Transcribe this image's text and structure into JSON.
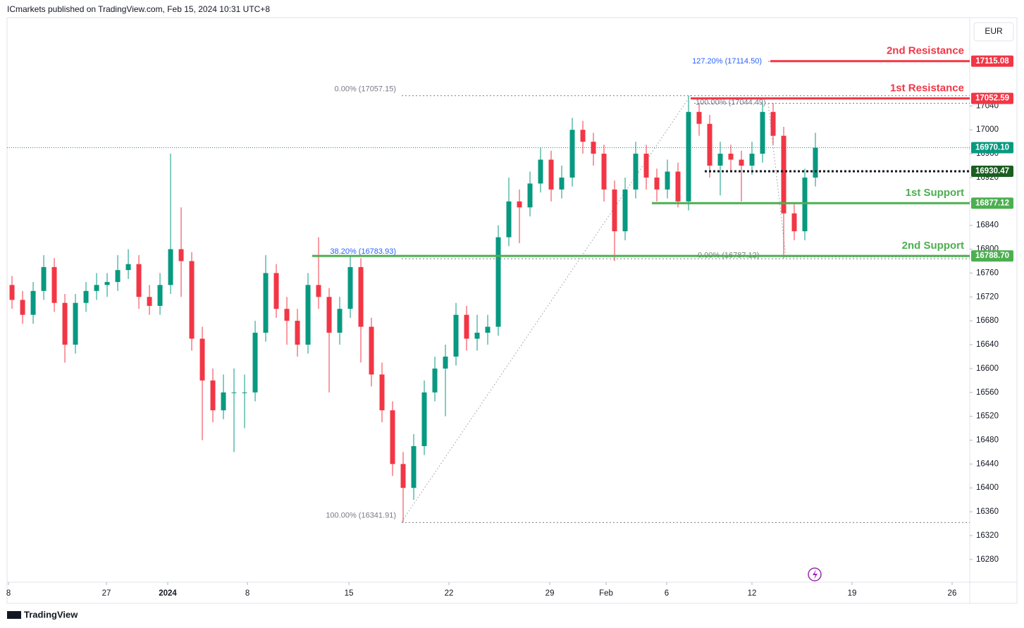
{
  "header": "ICmarkets published on TradingView.com, Feb 15, 2024 10:31 UTC+8",
  "footer": "TradingView",
  "chart_data": {
    "type": "candlestick",
    "currency": "EUR",
    "up_color": "#089981",
    "down_color": "#f23645",
    "candles": [
      [
        16740,
        16755,
        16700,
        16715
      ],
      [
        16715,
        16730,
        16675,
        16690
      ],
      [
        16690,
        16745,
        16675,
        16730
      ],
      [
        16730,
        16790,
        16715,
        16770
      ],
      [
        16770,
        16785,
        16695,
        16710
      ],
      [
        16710,
        16725,
        16610,
        16640
      ],
      [
        16640,
        16725,
        16625,
        16710
      ],
      [
        16710,
        16745,
        16695,
        16730
      ],
      [
        16730,
        16760,
        16715,
        16740
      ],
      [
        16740,
        16760,
        16720,
        16745
      ],
      [
        16745,
        16790,
        16730,
        16765
      ],
      [
        16765,
        16800,
        16750,
        16775
      ],
      [
        16775,
        16790,
        16700,
        16720
      ],
      [
        16720,
        16740,
        16690,
        16705
      ],
      [
        16705,
        16760,
        16690,
        16740
      ],
      [
        16740,
        16960,
        16725,
        16800
      ],
      [
        16800,
        16870,
        16720,
        16780
      ],
      [
        16780,
        16795,
        16630,
        16650
      ],
      [
        16650,
        16670,
        16480,
        16580
      ],
      [
        16580,
        16600,
        16510,
        16530
      ],
      [
        16530,
        16590,
        16515,
        16560
      ],
      [
        16560,
        16600,
        16460,
        16560
      ],
      [
        16560,
        16590,
        16500,
        16560
      ],
      [
        16560,
        16680,
        16545,
        16660
      ],
      [
        16660,
        16790,
        16645,
        16760
      ],
      [
        16760,
        16775,
        16685,
        16700
      ],
      [
        16700,
        16720,
        16640,
        16680
      ],
      [
        16680,
        16700,
        16620,
        16640
      ],
      [
        16640,
        16760,
        16625,
        16740
      ],
      [
        16740,
        16820,
        16700,
        16720
      ],
      [
        16720,
        16735,
        16560,
        16660
      ],
      [
        16660,
        16720,
        16640,
        16700
      ],
      [
        16700,
        16790,
        16685,
        16770
      ],
      [
        16770,
        16785,
        16610,
        16670
      ],
      [
        16670,
        16685,
        16570,
        16590
      ],
      [
        16590,
        16610,
        16510,
        16530
      ],
      [
        16530,
        16545,
        16420,
        16440
      ],
      [
        16440,
        16460,
        16342,
        16400
      ],
      [
        16400,
        16490,
        16380,
        16470
      ],
      [
        16470,
        16580,
        16455,
        16560
      ],
      [
        16560,
        16620,
        16545,
        16600
      ],
      [
        16600,
        16640,
        16520,
        16620
      ],
      [
        16620,
        16710,
        16605,
        16690
      ],
      [
        16690,
        16705,
        16630,
        16650
      ],
      [
        16650,
        16690,
        16630,
        16660
      ],
      [
        16660,
        16690,
        16640,
        16670
      ],
      [
        16670,
        16840,
        16655,
        16820
      ],
      [
        16820,
        16920,
        16805,
        16880
      ],
      [
        16880,
        16900,
        16810,
        16870
      ],
      [
        16870,
        16930,
        16855,
        16910
      ],
      [
        16910,
        16970,
        16895,
        16950
      ],
      [
        16950,
        16965,
        16880,
        16900
      ],
      [
        16900,
        16940,
        16885,
        16920
      ],
      [
        16920,
        17020,
        16905,
        17000
      ],
      [
        17000,
        17015,
        16960,
        16980
      ],
      [
        16980,
        16995,
        16940,
        16960
      ],
      [
        16960,
        16975,
        16880,
        16900
      ],
      [
        16900,
        16915,
        16780,
        16830
      ],
      [
        16830,
        16920,
        16815,
        16900
      ],
      [
        16900,
        16980,
        16885,
        16960
      ],
      [
        16960,
        16975,
        16900,
        16920
      ],
      [
        16920,
        16935,
        16880,
        16900
      ],
      [
        16900,
        16950,
        16885,
        16930
      ],
      [
        16930,
        16945,
        16870,
        16880
      ],
      [
        16880,
        17057,
        16865,
        17030
      ],
      [
        17030,
        17045,
        16990,
        17010
      ],
      [
        17010,
        17025,
        16920,
        16940
      ],
      [
        16940,
        16980,
        16890,
        16960
      ],
      [
        16960,
        16975,
        16930,
        16950
      ],
      [
        16950,
        16965,
        16880,
        16940
      ],
      [
        16940,
        16980,
        16925,
        16960
      ],
      [
        16960,
        17044,
        16945,
        17030
      ],
      [
        17030,
        17045,
        16975,
        16990
      ],
      [
        16990,
        17005,
        16785,
        16860
      ],
      [
        16860,
        16875,
        16815,
        16830
      ],
      [
        16830,
        16935,
        16815,
        16920
      ],
      [
        16920,
        16995,
        16905,
        16970
      ]
    ],
    "xlim": [
      -0.47,
      90.6
    ],
    "xticks": [
      {
        "value": -0.33,
        "label": "8"
      },
      {
        "value": 8.93,
        "label": "27"
      },
      {
        "value": 14.73,
        "label": "2024"
      },
      {
        "value": 22.27,
        "label": "8"
      },
      {
        "value": 31.87,
        "label": "15"
      },
      {
        "value": 41.33,
        "label": "22"
      },
      {
        "value": 50.87,
        "label": "29"
      },
      {
        "value": 56.2,
        "label": "Feb"
      },
      {
        "value": 61.93,
        "label": "6"
      },
      {
        "value": 70,
        "label": "12"
      },
      {
        "value": 79.47,
        "label": "19"
      },
      {
        "value": 88.93,
        "label": "26"
      }
    ],
    "ylim": [
      16242,
      17188
    ],
    "yticks": [
      16280,
      16320,
      16360,
      16400,
      16440,
      16480,
      16520,
      16560,
      16600,
      16640,
      16680,
      16720,
      16760,
      16800,
      16840,
      16880,
      16920,
      16960,
      17000,
      17040
    ],
    "levels": [
      {
        "name": "2nd Resistance",
        "value": 17115.08,
        "label": "17115.08",
        "color": "#f23645"
      },
      {
        "name": "1st Resistance",
        "value": 17052.59,
        "label": "17052.59",
        "color": "#f23645"
      },
      {
        "value": 16970.1,
        "label": "16970.10",
        "color": "#089981"
      },
      {
        "value": 16930.47,
        "label": "16930.47",
        "color": "#1b5e20"
      },
      {
        "name": "1st Support",
        "value": 16877.12,
        "label": "16877.12",
        "color": "#4caf50"
      },
      {
        "name": "2nd Support",
        "value": 16788.7,
        "label": "16788.70",
        "color": "#4caf50"
      }
    ],
    "fib_labels": [
      {
        "label": "127.20% (17114.50)",
        "value": 17114.5,
        "color": "#2962ff"
      },
      {
        "label": "0.00% (17057.15)",
        "value": 17057.15,
        "color": "#787b86"
      },
      {
        "label": "100.00% (17044.49)",
        "value": 17044.49,
        "color": "#787b86"
      },
      {
        "label": "38.20% (16783.93)",
        "value": 16783.93,
        "color": "#2962ff"
      },
      {
        "label": "0.00% (16787.12)",
        "value": 16787.12,
        "color": "#787b86"
      },
      {
        "label": "100.00% (16341.91)",
        "value": 16341.91,
        "color": "#787b86"
      }
    ]
  }
}
